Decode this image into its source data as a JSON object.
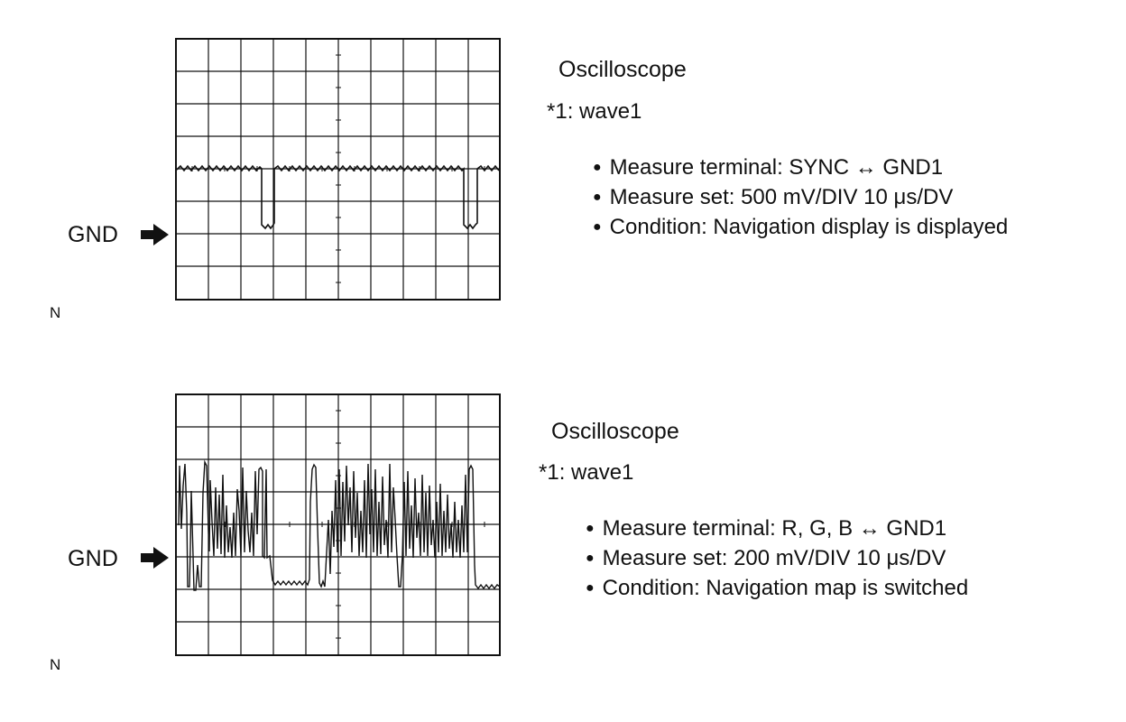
{
  "panels": [
    {
      "gnd_label": "GND",
      "note": "N",
      "title": "Oscilloscope",
      "wave_ref": "*1: wave1",
      "bullets": [
        "Measure terminal: SYNC ↔ GND1",
        "Measure set: 500 mV/DIV 10 μs/DV",
        "Condition: Navigation display is displayed"
      ]
    },
    {
      "gnd_label": "GND",
      "note": "N",
      "title": "Oscilloscope",
      "wave_ref": "*1: wave1",
      "bullets": [
        "Measure terminal: R, G, B ↔ GND1",
        "Measure set: 200 mV/DIV 10 μs/DV",
        "Condition: Navigation map is switched"
      ]
    }
  ],
  "colors": {
    "ink": "#111111",
    "background": "#ffffff"
  }
}
